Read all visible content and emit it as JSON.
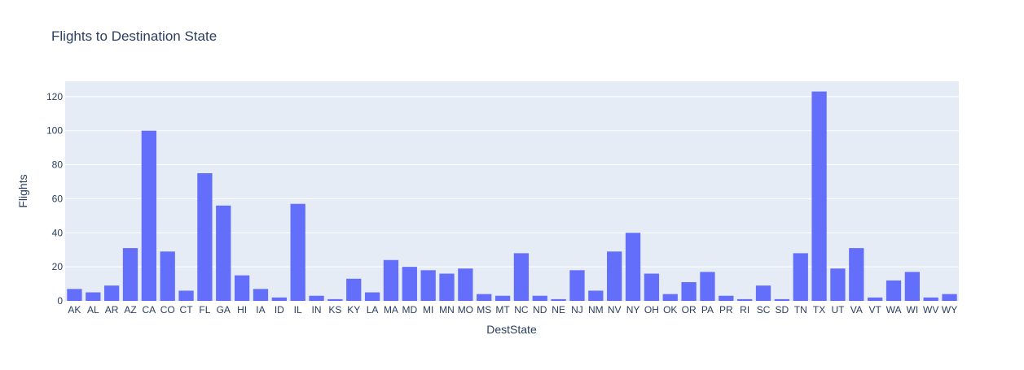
{
  "colors": {
    "bar": "#636efa",
    "plot_bg": "#e5ecf6",
    "grid": "#ffffff",
    "text": "#2a3f5f"
  },
  "chart_data": {
    "type": "bar",
    "title": "Flights to Destination State",
    "xlabel": "DestState",
    "ylabel": "Flights",
    "ylim": [
      0,
      129
    ],
    "yticks": [
      0,
      20,
      40,
      60,
      80,
      100,
      120
    ],
    "grid": true,
    "categories": [
      "AK",
      "AL",
      "AR",
      "AZ",
      "CA",
      "CO",
      "CT",
      "FL",
      "GA",
      "HI",
      "IA",
      "ID",
      "IL",
      "IN",
      "KS",
      "KY",
      "LA",
      "MA",
      "MD",
      "MI",
      "MN",
      "MO",
      "MS",
      "MT",
      "NC",
      "ND",
      "NE",
      "NJ",
      "NM",
      "NV",
      "NY",
      "OH",
      "OK",
      "OR",
      "PA",
      "PR",
      "RI",
      "SC",
      "SD",
      "TN",
      "TX",
      "UT",
      "VA",
      "VT",
      "WA",
      "WI",
      "WV",
      "WY"
    ],
    "values": [
      7,
      5,
      9,
      31,
      100,
      29,
      6,
      75,
      56,
      15,
      7,
      2,
      57,
      3,
      1,
      13,
      5,
      24,
      20,
      18,
      16,
      19,
      4,
      3,
      28,
      3,
      1,
      18,
      6,
      29,
      40,
      16,
      4,
      11,
      17,
      3,
      1,
      9,
      1,
      28,
      123,
      19,
      31,
      2,
      12,
      17,
      2,
      4
    ]
  }
}
